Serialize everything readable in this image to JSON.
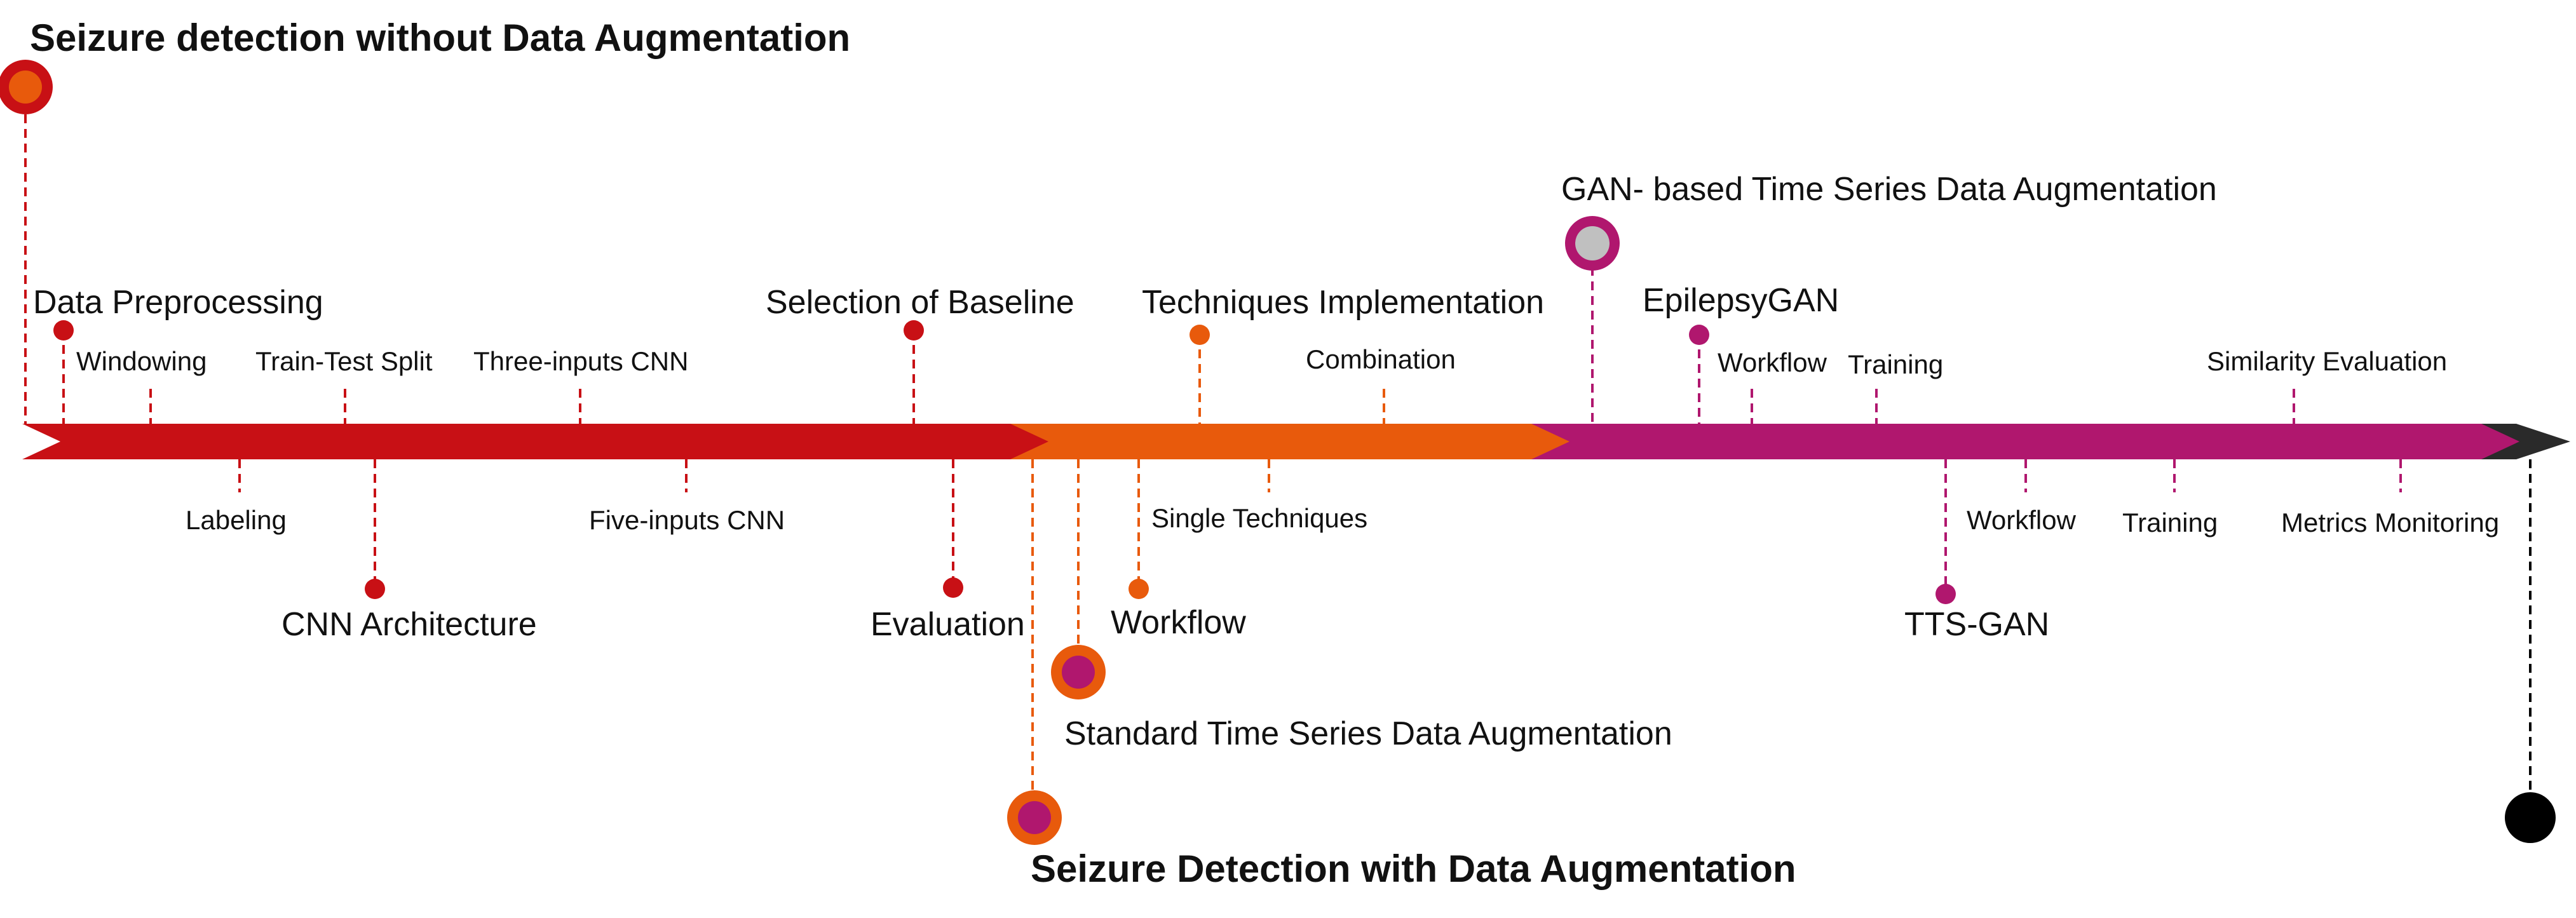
{
  "colors": {
    "red": "#c81015",
    "orange": "#e85a0c",
    "magenta": "#b0176e",
    "dark": "#2a2a2a",
    "black": "#000000",
    "grey": "#c0c0c0"
  },
  "titles": {
    "without_da": "Seizure detection without  Data Augmentation",
    "with_da": "Seizure Detection with Data Augmentation",
    "standard_da": "Standard Time Series Data Augmentation",
    "gan_da": "GAN- based Time Series Data Augmentation"
  },
  "phase1": {
    "data_preprocessing": "Data Preprocessing",
    "windowing": "Windowing",
    "labeling": "Labeling",
    "train_test_split": "Train-Test Split",
    "cnn_architecture": "CNN Architecture",
    "three_inputs_cnn": "Three-inputs CNN",
    "five_inputs_cnn": "Five-inputs CNN",
    "selection_of_baseline": "Selection of Baseline",
    "evaluation": "Evaluation"
  },
  "phase2": {
    "techniques_implementation": "Techniques Implementation",
    "combination": "Combination",
    "single_techniques": "Single Techniques",
    "workflow": "Workflow"
  },
  "phase3": {
    "epilepsygan": "EpilepsyGAN",
    "workflow_top": "Workflow",
    "training_top": "Training",
    "similarity_evaluation": "Similarity Evaluation",
    "tts_gan": "TTS-GAN",
    "workflow_bottom": "Workflow",
    "training_bottom": "Training",
    "metrics_monitoring": "Metrics Monitoring"
  }
}
